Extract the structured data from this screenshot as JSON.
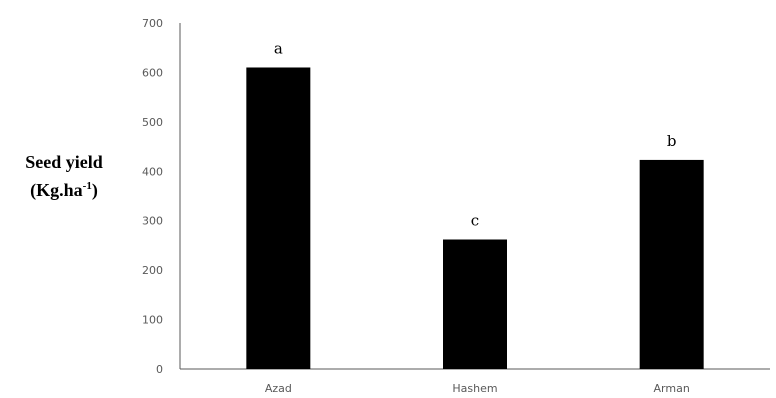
{
  "chart_data": {
    "type": "bar",
    "categories": [
      "Azad",
      "Hashem",
      "Arman"
    ],
    "values": [
      610,
      262,
      423
    ],
    "significance_letters": [
      "a",
      "c",
      "b"
    ],
    "ylabel_line1": "Seed yield",
    "ylabel_line2_prefix": "(Kg.ha",
    "ylabel_superscript": "-1",
    "ylabel_line2_suffix": ")",
    "ylim": [
      0,
      700
    ],
    "yticks": [
      "0",
      "100",
      "200",
      "300",
      "400",
      "500",
      "600",
      "700"
    ],
    "grid": false,
    "legend": "none",
    "bar_color": "#000000",
    "axis_color": "#595959"
  }
}
